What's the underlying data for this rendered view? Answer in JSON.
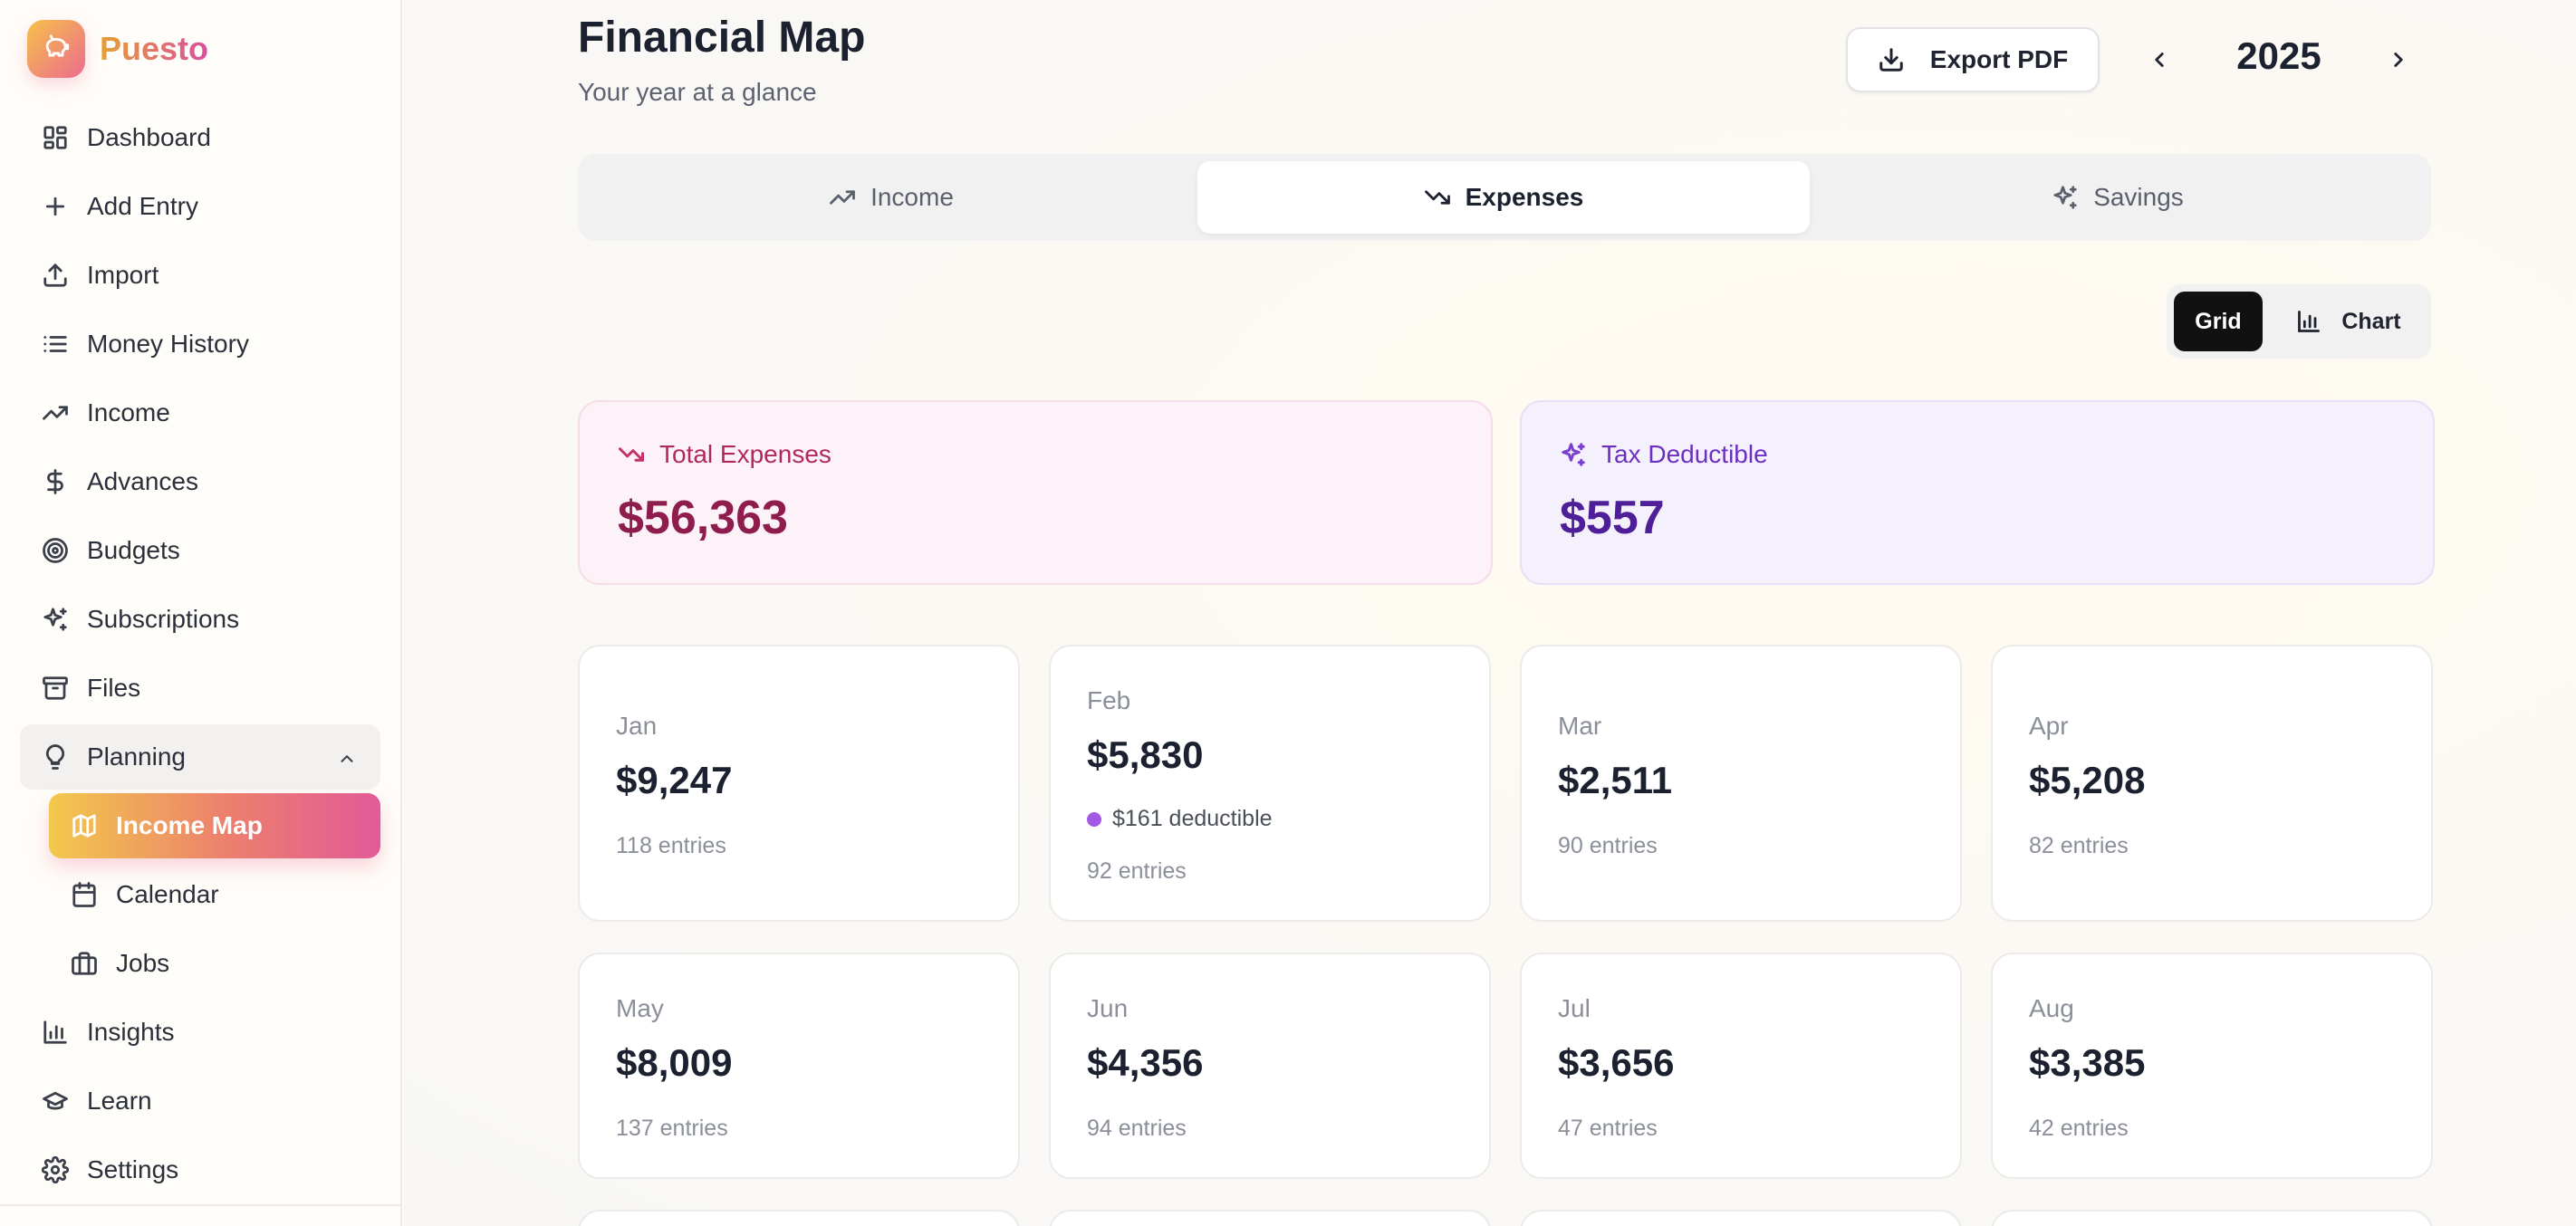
{
  "brand": {
    "name": "Puesto"
  },
  "sidebar": {
    "items": [
      {
        "label": "Dashboard",
        "icon": "dashboard-grid-icon"
      },
      {
        "label": "Add Entry",
        "icon": "plus-icon"
      },
      {
        "label": "Import",
        "icon": "upload-icon"
      },
      {
        "label": "Money History",
        "icon": "list-icon"
      },
      {
        "label": "Income",
        "icon": "trending-up-icon"
      },
      {
        "label": "Advances",
        "icon": "dollar-icon"
      },
      {
        "label": "Budgets",
        "icon": "target-icon"
      },
      {
        "label": "Subscriptions",
        "icon": "sparkles-icon"
      },
      {
        "label": "Files",
        "icon": "archive-icon"
      },
      {
        "label": "Planning",
        "icon": "lightbulb-icon"
      },
      {
        "label": "Income Map",
        "icon": "map-icon"
      },
      {
        "label": "Calendar",
        "icon": "calendar-icon"
      },
      {
        "label": "Jobs",
        "icon": "briefcase-icon"
      },
      {
        "label": "Insights",
        "icon": "bar-chart-icon"
      },
      {
        "label": "Learn",
        "icon": "graduation-cap-icon"
      },
      {
        "label": "Settings",
        "icon": "gear-icon"
      }
    ],
    "active": "Income Map"
  },
  "header": {
    "title": "Financial Map",
    "subtitle": "Your year at a glance",
    "export_label": "Export PDF",
    "year": "2025"
  },
  "tabs": [
    {
      "label": "Income"
    },
    {
      "label": "Expenses"
    },
    {
      "label": "Savings"
    }
  ],
  "active_tab": "Expenses",
  "view_toggle": {
    "grid_label": "Grid",
    "chart_label": "Chart",
    "active": "Grid"
  },
  "summary": {
    "total_label": "Total Expenses",
    "total_value": "$56,363",
    "tax_label": "Tax Deductible",
    "tax_value": "$557"
  },
  "months": [
    {
      "name": "Jan",
      "amount": "$9,247",
      "entries": "118 entries"
    },
    {
      "name": "Feb",
      "amount": "$5,830",
      "deductible": "$161 deductible",
      "entries": "92 entries"
    },
    {
      "name": "Mar",
      "amount": "$2,511",
      "entries": "90 entries"
    },
    {
      "name": "Apr",
      "amount": "$5,208",
      "entries": "82 entries"
    },
    {
      "name": "May",
      "amount": "$8,009",
      "entries": "137 entries"
    },
    {
      "name": "Jun",
      "amount": "$4,356",
      "entries": "94 entries"
    },
    {
      "name": "Jul",
      "amount": "$3,656",
      "entries": "47 entries"
    },
    {
      "name": "Aug",
      "amount": "$3,385",
      "entries": "42 entries"
    }
  ],
  "colors": {
    "accent_gradient_start": "#f2c94c",
    "accent_gradient_end": "#e25a98",
    "expense_text": "#8e1d4e",
    "tax_text": "#4e1f99",
    "deductible_dot": "#a259e6"
  }
}
